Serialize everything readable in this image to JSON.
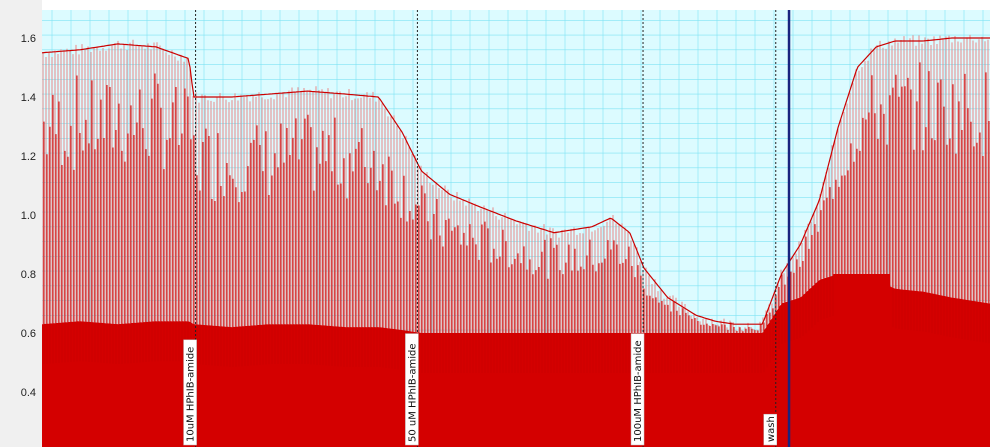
{
  "chart_data": {
    "type": "line",
    "title": "",
    "xlabel": "",
    "ylabel": "",
    "ylim": [
      0.25,
      1.67
    ],
    "y_ticks": [
      "1.6",
      "1.4",
      "1.2",
      "1.0",
      "0.8",
      "0.6",
      "0.4"
    ],
    "y_tick_values": [
      1.6,
      1.4,
      1.2,
      1.0,
      0.8,
      0.6,
      0.4
    ],
    "grid": true,
    "colors": {
      "trace": "#cc0000",
      "trace_light": "#e88888",
      "fill": "#d40000",
      "grid": "#7fe3f3",
      "plot_bg": "#dcfbff",
      "axis_bg": "#f0f0f0",
      "marker_line": "#222222",
      "cursor_line": "#1a237e"
    },
    "series": [
      {
        "comment_free_points": true,
        "x": [
          0.0,
          0.04,
          0.08,
          0.12,
          0.155,
          0.16,
          0.2,
          0.24,
          0.28,
          0.32,
          0.355,
          0.38,
          0.4,
          0.43,
          0.46,
          0.5,
          0.54,
          0.58,
          0.6,
          0.62,
          0.635,
          0.66,
          0.69,
          0.71,
          0.73,
          0.74,
          0.745,
          0.76,
          0.78,
          0.8,
          0.82,
          0.84,
          0.86,
          0.88,
          0.9,
          0.93,
          0.96,
          1.0
        ],
        "peak": [
          1.55,
          1.56,
          1.58,
          1.57,
          1.53,
          1.4,
          1.4,
          1.41,
          1.42,
          1.41,
          1.4,
          1.28,
          1.15,
          1.07,
          1.03,
          0.98,
          0.94,
          0.96,
          0.99,
          0.94,
          0.82,
          0.72,
          0.66,
          0.64,
          0.63,
          0.63,
          0.63,
          0.63,
          0.8,
          0.9,
          1.05,
          1.3,
          1.5,
          1.57,
          1.59,
          1.59,
          1.6,
          1.6
        ],
        "trough": [
          0.63,
          0.64,
          0.63,
          0.64,
          0.64,
          0.63,
          0.62,
          0.63,
          0.63,
          0.62,
          0.62,
          0.61,
          0.6,
          0.6,
          0.6,
          0.6,
          0.6,
          0.6,
          0.6,
          0.6,
          0.6,
          0.6,
          0.6,
          0.6,
          0.6,
          0.6,
          0.6,
          0.6,
          0.7,
          0.72,
          0.78,
          0.8,
          0.8,
          0.78,
          0.75,
          0.74,
          0.72,
          0.7
        ]
      }
    ],
    "markers": [
      {
        "label": "10uM HPhIB-amide",
        "x": 0.162
      },
      {
        "label": "50 uM HPhIB-amide",
        "x": 0.396
      },
      {
        "label": "100uM HPhIB-amide",
        "x": 0.634
      },
      {
        "label": "wash",
        "x": 0.774
      }
    ],
    "cursor_x": 0.788
  }
}
